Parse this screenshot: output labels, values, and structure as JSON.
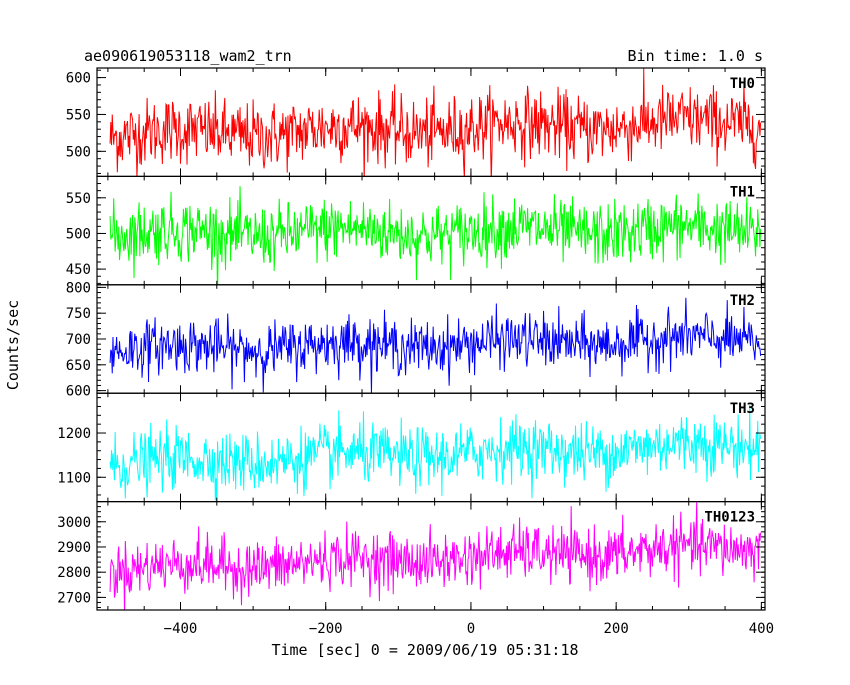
{
  "header": {
    "title": "ae090619053118_wam2_trn",
    "bin_time": "Bin time: 1.0 s"
  },
  "chart_data": {
    "type": "line",
    "ylabel": "Counts/sec",
    "xlabel": "Time [sec] 0 = 2009/06/19 05:31:18",
    "xlim": [
      -515,
      405
    ],
    "x_ticks": [
      -400,
      -200,
      0,
      200,
      400
    ],
    "x_tick_labels": [
      "−400",
      "−200",
      "0",
      "200",
      "400"
    ],
    "x_range_data": [
      -497,
      399
    ],
    "grid": false,
    "panels": [
      {
        "label": "TH0",
        "color": "#ff0000",
        "ylim": [
          466,
          613
        ],
        "y_ticks": [
          500,
          550,
          600
        ],
        "y_tick_labels": [
          "500",
          "550",
          "600"
        ],
        "level_start": 522,
        "level_end": 540,
        "noise": 23
      },
      {
        "label": "TH1",
        "color": "#00ff00",
        "ylim": [
          428,
          580
        ],
        "y_ticks": [
          450,
          500,
          550
        ],
        "y_tick_labels": [
          "450",
          "500",
          "550"
        ],
        "level_start": 500,
        "level_end": 505,
        "noise": 22
      },
      {
        "label": "TH2",
        "color": "#0000ff",
        "ylim": [
          595,
          805
        ],
        "y_ticks": [
          600,
          650,
          700,
          750,
          800
        ],
        "y_tick_labels": [
          "600",
          "650",
          "700",
          "750",
          "800"
        ],
        "level_start": 680,
        "level_end": 700,
        "noise": 26
      },
      {
        "label": "TH3",
        "color": "#00ffff",
        "ylim": [
          1045,
          1290
        ],
        "y_ticks": [
          1100,
          1200
        ],
        "y_tick_labels": [
          "1100",
          "1200"
        ],
        "level_start": 1130,
        "level_end": 1175,
        "noise": 34
      },
      {
        "label": "TH0123",
        "color": "#ff00ff",
        "ylim": [
          2650,
          3080
        ],
        "y_ticks": [
          2700,
          2800,
          2900,
          3000
        ],
        "y_tick_labels": [
          "2700",
          "2800",
          "2900",
          "3000"
        ],
        "level_start": 2810,
        "level_end": 2900,
        "noise": 55
      }
    ]
  }
}
